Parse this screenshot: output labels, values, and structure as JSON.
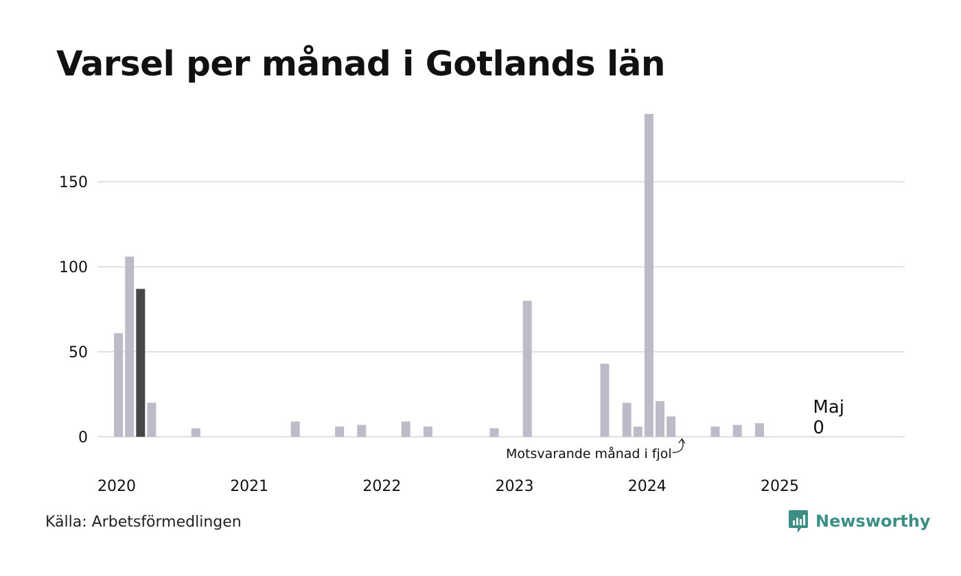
{
  "title": "Varsel per månad i Gotlands län",
  "source": "Källa: Arbetsförmedlingen",
  "brand": {
    "name": "Newsworthy",
    "icon": "newsworthy-logo-icon",
    "color": "#3d8f86"
  },
  "colors": {
    "bar": "#bcbbc8",
    "highlight": "#464646",
    "grid": "#e0dfe6"
  },
  "chart_data": {
    "type": "bar",
    "start": "2020-01",
    "x_ticks": [
      "2020",
      "2021",
      "2022",
      "2023",
      "2024",
      "2025"
    ],
    "y_ticks": [
      0,
      50,
      100,
      150
    ],
    "ylim": [
      0,
      190
    ],
    "grid": true,
    "values": [
      0,
      61,
      106,
      87,
      20,
      0,
      0,
      0,
      5,
      0,
      0,
      0,
      0,
      0,
      0,
      0,
      0,
      9,
      0,
      0,
      0,
      6,
      0,
      7,
      0,
      0,
      0,
      9,
      0,
      6,
      0,
      0,
      0,
      0,
      0,
      5,
      0,
      0,
      80,
      0,
      0,
      0,
      0,
      0,
      0,
      43,
      0,
      20,
      6,
      190,
      21,
      12,
      0,
      0,
      0,
      6,
      0,
      7,
      0,
      8,
      0,
      0,
      0,
      0,
      0
    ],
    "highlight_month": "2020-04",
    "annotation": {
      "text": "Motsvarande månad i fjol",
      "month": "2024-05"
    },
    "last_label": {
      "month": "Maj",
      "value": "0"
    }
  }
}
